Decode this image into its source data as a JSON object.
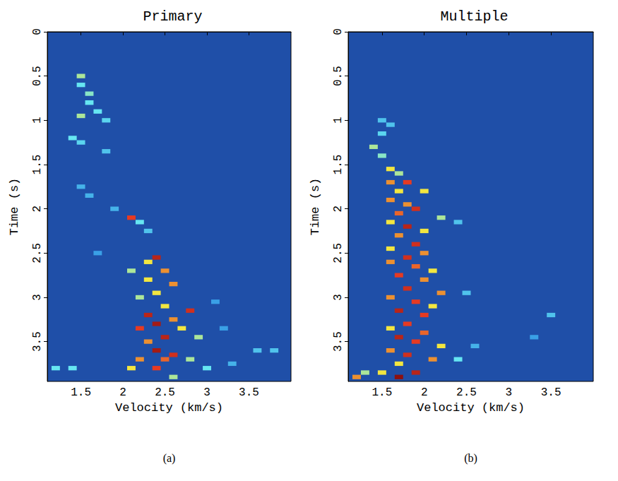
{
  "chart_data": [
    {
      "type": "heatmap",
      "title": "Primary",
      "panel": "(a)",
      "x_label": "Velocity (km/s)",
      "y_label": "Time (s)",
      "xlim": [
        1.1,
        4.0
      ],
      "ylim": [
        0,
        3.95
      ],
      "xticks": [
        1.5,
        2,
        2.5,
        3,
        3.5
      ],
      "yticks": [
        0,
        0.5,
        1,
        1.5,
        2,
        2.5,
        3,
        3.5
      ],
      "color_range": [
        0,
        1
      ],
      "cells": [
        [
          1.5,
          0.5,
          0.5
        ],
        [
          1.5,
          0.6,
          0.4
        ],
        [
          1.6,
          0.7,
          0.45
        ],
        [
          1.6,
          0.8,
          0.4
        ],
        [
          1.7,
          0.9,
          0.4
        ],
        [
          1.8,
          1.0,
          0.35
        ],
        [
          1.5,
          0.95,
          0.5
        ],
        [
          1.4,
          1.2,
          0.4
        ],
        [
          1.5,
          1.25,
          0.35
        ],
        [
          1.8,
          1.35,
          0.3
        ],
        [
          1.5,
          1.75,
          0.25
        ],
        [
          1.6,
          1.85,
          0.25
        ],
        [
          1.9,
          2.0,
          0.25
        ],
        [
          2.1,
          2.1,
          0.8
        ],
        [
          2.2,
          2.15,
          0.4
        ],
        [
          2.3,
          2.25,
          0.3
        ],
        [
          1.7,
          2.5,
          0.2
        ],
        [
          2.4,
          2.55,
          0.9
        ],
        [
          2.3,
          2.6,
          0.6
        ],
        [
          2.1,
          2.7,
          0.5
        ],
        [
          2.5,
          2.7,
          0.7
        ],
        [
          2.3,
          2.8,
          0.6
        ],
        [
          2.6,
          2.85,
          0.7
        ],
        [
          2.4,
          2.95,
          0.6
        ],
        [
          2.2,
          3.0,
          0.5
        ],
        [
          2.5,
          3.1,
          0.6
        ],
        [
          2.8,
          3.15,
          0.85
        ],
        [
          2.3,
          3.2,
          0.9
        ],
        [
          2.6,
          3.25,
          0.7
        ],
        [
          2.4,
          3.3,
          0.95
        ],
        [
          2.2,
          3.35,
          0.8
        ],
        [
          2.7,
          3.35,
          0.6
        ],
        [
          2.5,
          3.45,
          0.9
        ],
        [
          2.3,
          3.5,
          0.7
        ],
        [
          2.9,
          3.45,
          0.5
        ],
        [
          2.4,
          3.6,
          0.95
        ],
        [
          2.6,
          3.65,
          0.85
        ],
        [
          2.2,
          3.7,
          0.7
        ],
        [
          2.5,
          3.7,
          0.75
        ],
        [
          2.8,
          3.7,
          0.5
        ],
        [
          2.1,
          3.8,
          0.6
        ],
        [
          2.4,
          3.8,
          0.8
        ],
        [
          3.0,
          3.8,
          0.4
        ],
        [
          2.6,
          3.9,
          0.5
        ],
        [
          3.1,
          3.05,
          0.2
        ],
        [
          3.2,
          3.35,
          0.2
        ],
        [
          3.6,
          3.6,
          0.3
        ],
        [
          3.8,
          3.6,
          0.3
        ],
        [
          3.3,
          3.75,
          0.25
        ],
        [
          1.4,
          3.8,
          0.4
        ],
        [
          1.2,
          3.8,
          0.4
        ]
      ]
    },
    {
      "type": "heatmap",
      "title": "Multiple",
      "panel": "(b)",
      "x_label": "Velocity (km/s)",
      "y_label": "Time (s)",
      "xlim": [
        1.1,
        4.0
      ],
      "ylim": [
        0,
        3.95
      ],
      "xticks": [
        1.5,
        2,
        2.5,
        3,
        3.5
      ],
      "yticks": [
        0,
        0.5,
        1,
        1.5,
        2,
        2.5,
        3,
        3.5
      ],
      "color_range": [
        0,
        1
      ],
      "cells": [
        [
          1.5,
          1.0,
          0.3
        ],
        [
          1.6,
          1.05,
          0.3
        ],
        [
          1.5,
          1.15,
          0.35
        ],
        [
          1.4,
          1.3,
          0.5
        ],
        [
          1.5,
          1.4,
          0.45
        ],
        [
          1.6,
          1.55,
          0.6
        ],
        [
          1.7,
          1.6,
          0.5
        ],
        [
          1.6,
          1.7,
          0.7
        ],
        [
          1.8,
          1.7,
          0.8
        ],
        [
          1.7,
          1.8,
          0.6
        ],
        [
          2.0,
          1.8,
          0.6
        ],
        [
          1.6,
          1.9,
          0.7
        ],
        [
          1.8,
          1.95,
          0.7
        ],
        [
          1.9,
          2.0,
          0.85
        ],
        [
          1.7,
          2.05,
          0.75
        ],
        [
          2.2,
          2.1,
          0.5
        ],
        [
          1.6,
          2.15,
          0.6
        ],
        [
          1.8,
          2.2,
          0.9
        ],
        [
          2.0,
          2.25,
          0.6
        ],
        [
          1.7,
          2.3,
          0.7
        ],
        [
          1.9,
          2.4,
          0.85
        ],
        [
          1.6,
          2.45,
          0.6
        ],
        [
          2.0,
          2.5,
          0.7
        ],
        [
          1.8,
          2.55,
          0.85
        ],
        [
          1.6,
          2.6,
          0.7
        ],
        [
          1.9,
          2.65,
          0.75
        ],
        [
          2.1,
          2.7,
          0.6
        ],
        [
          1.7,
          2.75,
          0.8
        ],
        [
          2.0,
          2.8,
          0.7
        ],
        [
          1.8,
          2.9,
          0.85
        ],
        [
          2.2,
          2.95,
          0.7
        ],
        [
          1.6,
          3.0,
          0.7
        ],
        [
          1.9,
          3.05,
          0.8
        ],
        [
          2.1,
          3.1,
          0.6
        ],
        [
          1.7,
          3.15,
          0.9
        ],
        [
          2.0,
          3.2,
          0.8
        ],
        [
          1.8,
          3.3,
          0.8
        ],
        [
          1.6,
          3.35,
          0.6
        ],
        [
          2.0,
          3.4,
          0.75
        ],
        [
          1.7,
          3.45,
          0.9
        ],
        [
          1.9,
          3.5,
          0.8
        ],
        [
          2.2,
          3.55,
          0.6
        ],
        [
          1.6,
          3.6,
          0.7
        ],
        [
          1.8,
          3.65,
          0.85
        ],
        [
          2.1,
          3.7,
          0.7
        ],
        [
          1.7,
          3.75,
          0.6
        ],
        [
          2.4,
          3.7,
          0.4
        ],
        [
          1.5,
          3.85,
          0.6
        ],
        [
          1.9,
          3.85,
          0.9
        ],
        [
          1.7,
          3.9,
          1.0
        ],
        [
          1.3,
          3.85,
          0.5
        ],
        [
          1.2,
          3.9,
          0.7
        ],
        [
          2.4,
          2.15,
          0.3
        ],
        [
          2.5,
          2.95,
          0.3
        ],
        [
          3.5,
          3.2,
          0.3
        ],
        [
          3.3,
          3.45,
          0.2
        ],
        [
          2.6,
          3.55,
          0.25
        ]
      ]
    }
  ]
}
